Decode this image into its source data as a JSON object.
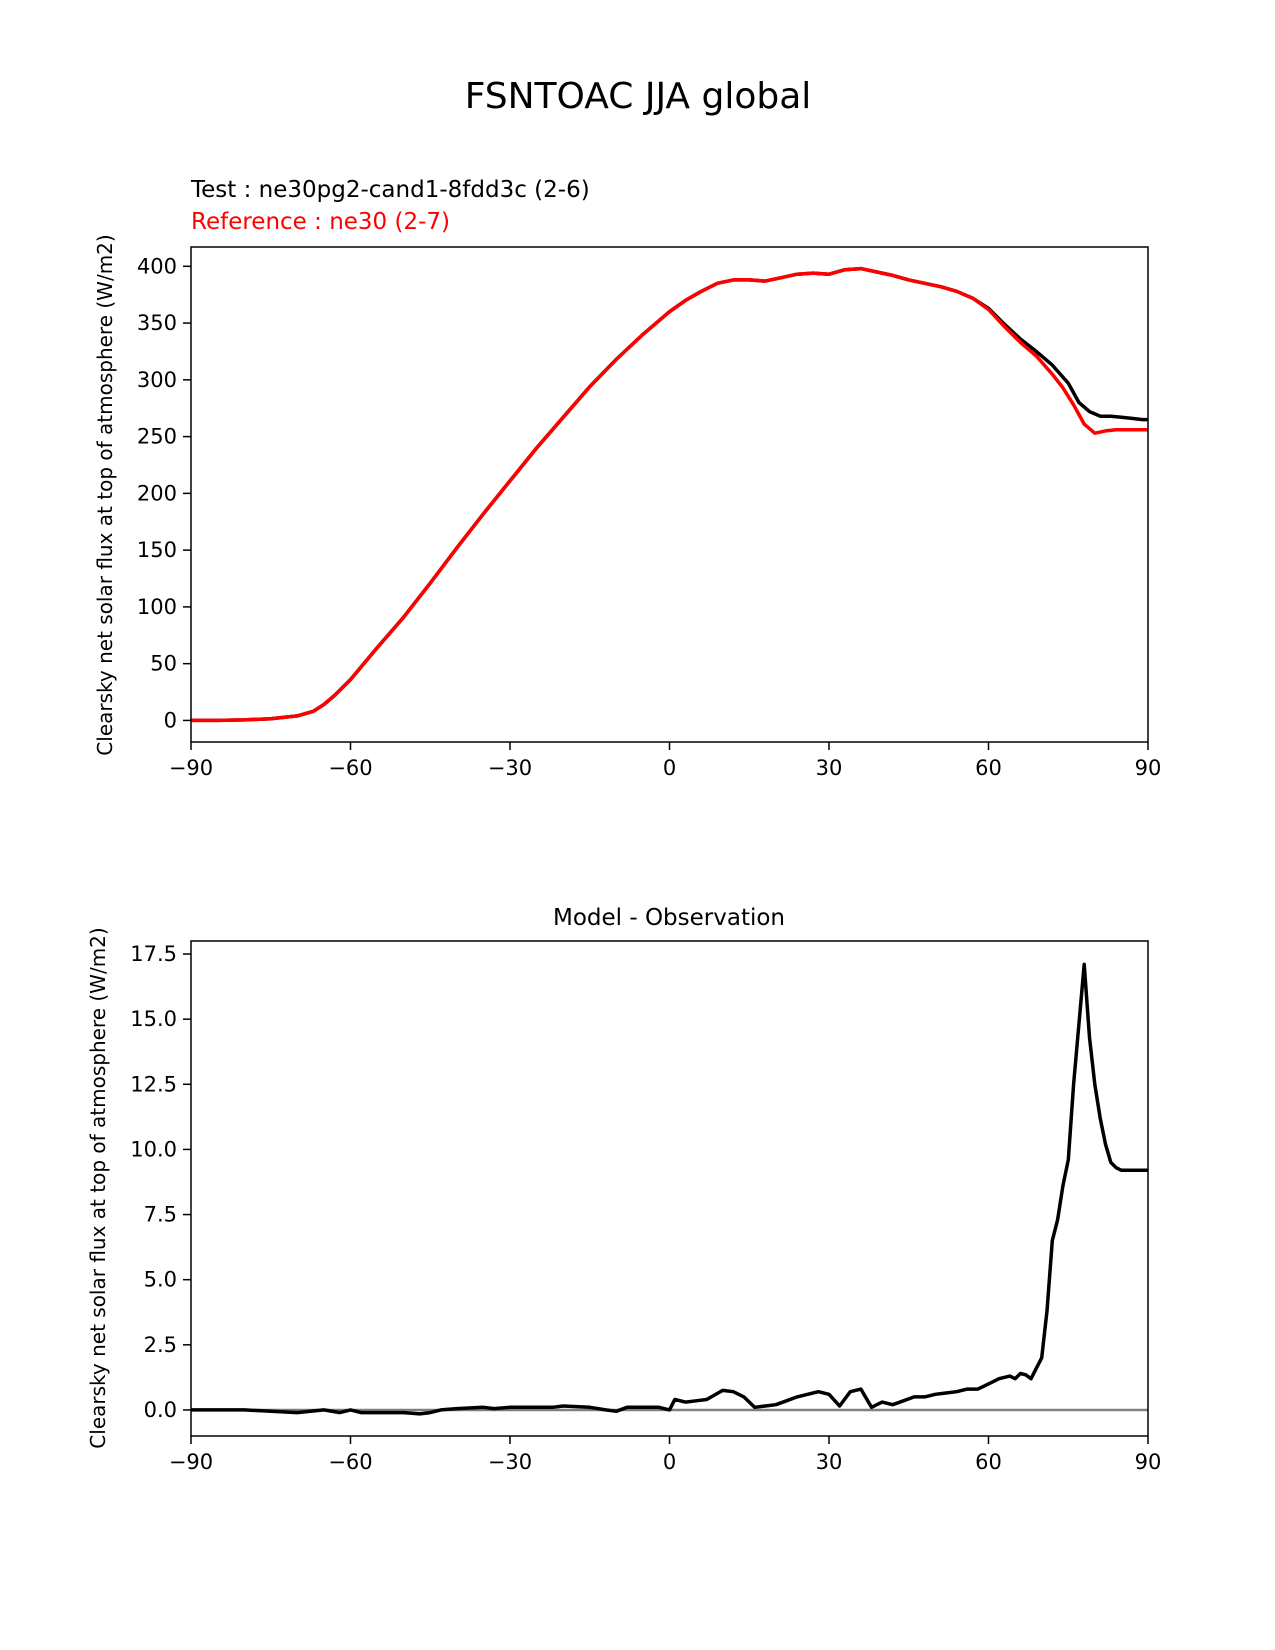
{
  "figure": {
    "title": "FSNTOAC JJA global",
    "colors": {
      "test": "#000000",
      "reference": "#ff0000",
      "zero_line": "#808080",
      "axes": "#000000"
    }
  },
  "chart_data": [
    {
      "type": "line",
      "name": "top-panel",
      "title": "",
      "test_label": "Test : ne30pg2-cand1-8fdd3c (2-6)",
      "reference_label": "Reference : ne30 (2-7)",
      "xlabel": "",
      "ylabel": "Clearsky net solar flux at top of atmosphere (W/m2)",
      "xlim": [
        -90,
        90
      ],
      "ylim": [
        -19,
        417
      ],
      "xticks": [
        -90,
        -60,
        -30,
        0,
        30,
        60,
        90
      ],
      "xtick_labels": [
        "−90",
        "−60",
        "−30",
        "0",
        "30",
        "60",
        "90"
      ],
      "yticks": [
        0,
        50,
        100,
        150,
        200,
        250,
        300,
        350,
        400
      ],
      "ytick_labels": [
        "0",
        "50",
        "100",
        "150",
        "200",
        "250",
        "300",
        "350",
        "400"
      ],
      "series": [
        {
          "name": "Test",
          "color": "#000000",
          "x": [
            -90,
            -85,
            -80,
            -75,
            -70,
            -67,
            -65,
            -63,
            -60,
            -55,
            -50,
            -45,
            -40,
            -35,
            -30,
            -25,
            -20,
            -15,
            -10,
            -5,
            0,
            3,
            6,
            9,
            12,
            15,
            18,
            21,
            24,
            27,
            30,
            33,
            36,
            39,
            42,
            45,
            48,
            51,
            54,
            57,
            60,
            63,
            66,
            69,
            72,
            75,
            77,
            79,
            81,
            83,
            85,
            87,
            89,
            90
          ],
          "values": [
            0,
            0,
            0.5,
            1.5,
            4,
            8,
            14,
            22,
            36,
            64,
            91,
            121,
            152,
            182,
            211,
            240,
            267,
            294,
            318,
            340,
            360,
            370,
            378,
            385,
            388,
            388,
            387,
            390,
            393,
            394,
            393,
            397,
            398,
            395,
            392,
            388,
            385,
            382,
            378,
            372,
            363,
            349,
            336,
            325,
            313,
            297,
            280,
            272,
            268,
            268,
            267,
            266,
            265,
            265
          ]
        },
        {
          "name": "Reference",
          "color": "#ff0000",
          "x": [
            -90,
            -85,
            -80,
            -75,
            -70,
            -67,
            -65,
            -63,
            -60,
            -55,
            -50,
            -45,
            -40,
            -35,
            -30,
            -25,
            -20,
            -15,
            -10,
            -5,
            0,
            3,
            6,
            9,
            12,
            15,
            18,
            21,
            24,
            27,
            30,
            33,
            36,
            39,
            42,
            45,
            48,
            51,
            54,
            57,
            60,
            63,
            66,
            69,
            72,
            74,
            76,
            78,
            80,
            82,
            84,
            86,
            88,
            90
          ],
          "values": [
            0,
            0,
            0.5,
            1.5,
            4,
            8,
            14,
            22,
            36,
            64,
            91,
            121,
            152,
            182,
            211,
            240,
            267,
            294,
            318,
            340,
            360,
            370,
            378,
            385,
            388,
            388,
            387,
            390,
            393,
            394,
            393,
            397,
            398,
            395,
            392,
            388,
            385,
            382,
            378,
            372,
            362,
            347,
            333,
            321,
            305,
            293,
            278,
            261,
            253,
            255,
            256,
            256,
            256,
            256
          ]
        }
      ]
    },
    {
      "type": "line",
      "name": "bottom-panel",
      "title": "Model - Observation",
      "xlabel": "",
      "ylabel": "Clearsky net solar flux at top of atmosphere (W/m2)",
      "xlim": [
        -90,
        90
      ],
      "ylim": [
        -1.0,
        18.0
      ],
      "xticks": [
        -90,
        -60,
        -30,
        0,
        30,
        60,
        90
      ],
      "xtick_labels": [
        "−90",
        "−60",
        "−30",
        "0",
        "30",
        "60",
        "90"
      ],
      "yticks": [
        0.0,
        2.5,
        5.0,
        7.5,
        10.0,
        12.5,
        15.0,
        17.5
      ],
      "ytick_labels": [
        "0.0",
        "2.5",
        "5.0",
        "7.5",
        "10.0",
        "12.5",
        "15.0",
        "17.5"
      ],
      "zero_line": 0,
      "series": [
        {
          "name": "Model - Observation",
          "color": "#000000",
          "x": [
            -90,
            -80,
            -75,
            -70,
            -65,
            -62,
            -60,
            -58,
            -55,
            -50,
            -47,
            -45,
            -43,
            -40,
            -35,
            -33,
            -30,
            -25,
            -22,
            -20,
            -15,
            -12,
            -10,
            -8,
            -5,
            -2,
            0,
            1,
            3,
            5,
            7,
            10,
            12,
            14,
            16,
            18,
            20,
            22,
            24,
            26,
            28,
            30,
            32,
            34,
            36,
            38,
            40,
            42,
            44,
            46,
            48,
            50,
            52,
            54,
            56,
            58,
            60,
            62,
            64,
            65,
            66,
            67,
            68,
            70,
            71,
            72,
            73,
            74,
            75,
            76,
            77,
            78,
            79,
            80,
            81,
            82,
            83,
            84,
            85,
            86,
            87,
            88,
            89,
            90
          ],
          "values": [
            0.0,
            0.0,
            -0.05,
            -0.1,
            0.0,
            -0.1,
            0.0,
            -0.1,
            -0.1,
            -0.1,
            -0.15,
            -0.1,
            0.0,
            0.05,
            0.1,
            0.05,
            0.1,
            0.1,
            0.1,
            0.15,
            0.1,
            0.0,
            -0.05,
            0.1,
            0.1,
            0.1,
            0.0,
            0.4,
            0.3,
            0.35,
            0.4,
            0.75,
            0.7,
            0.5,
            0.1,
            0.15,
            0.2,
            0.35,
            0.5,
            0.6,
            0.7,
            0.6,
            0.15,
            0.7,
            0.8,
            0.1,
            0.3,
            0.2,
            0.35,
            0.5,
            0.5,
            0.6,
            0.65,
            0.7,
            0.8,
            0.8,
            1.0,
            1.2,
            1.3,
            1.2,
            1.4,
            1.35,
            1.2,
            2.0,
            3.8,
            6.5,
            7.3,
            8.6,
            9.6,
            12.5,
            14.8,
            17.1,
            14.3,
            12.5,
            11.2,
            10.2,
            9.5,
            9.3,
            9.2,
            9.2,
            9.2,
            9.2,
            9.2,
            9.2
          ]
        }
      ]
    }
  ]
}
